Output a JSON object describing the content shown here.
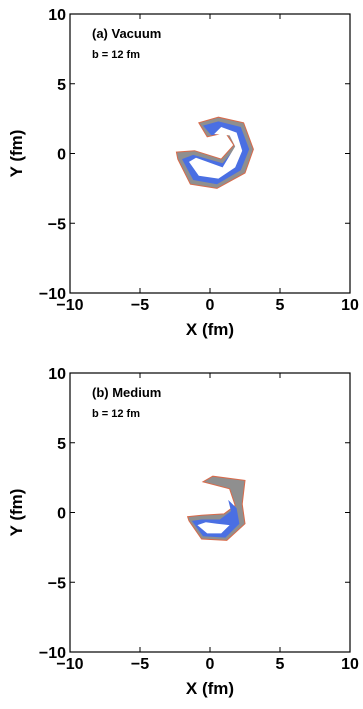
{
  "chart_data": [
    {
      "type": "heatmap",
      "panel_label": "(a) Vacuum",
      "panel_sublabel": "b = 12 fm",
      "xlabel": "X (fm)",
      "ylabel": "Y (fm)",
      "xlim": [
        -10,
        10
      ],
      "ylim": [
        -10,
        10
      ],
      "xticks": [
        -10,
        -5,
        0,
        5,
        10
      ],
      "yticks": [
        -10,
        -5,
        0,
        5,
        10
      ],
      "grid": false,
      "colors": {
        "outer": "#8f8f8f",
        "mid": "#4a6fe3",
        "core": "#ffffff",
        "edge": "#d96a4a"
      },
      "regions": {
        "outer": [
          [
            -2.3,
            -0.4
          ],
          [
            -1.4,
            -2.2
          ],
          [
            0.5,
            -2.5
          ],
          [
            2.5,
            -1.4
          ],
          [
            3.1,
            0.3
          ],
          [
            2.4,
            2.2
          ],
          [
            0.6,
            2.6
          ],
          [
            -0.8,
            2.2
          ],
          [
            -0.2,
            1.2
          ],
          [
            1.1,
            1.5
          ],
          [
            1.7,
            0.6
          ],
          [
            0.8,
            -0.4
          ],
          [
            -1.1,
            0.2
          ],
          [
            -2.4,
            0.1
          ]
        ],
        "mid": [
          [
            -2.0,
            -0.4
          ],
          [
            -1.2,
            -1.9
          ],
          [
            0.5,
            -2.2
          ],
          [
            2.2,
            -1.2
          ],
          [
            2.8,
            0.3
          ],
          [
            2.2,
            1.9
          ],
          [
            0.6,
            2.3
          ],
          [
            -0.5,
            2.0
          ],
          [
            0.1,
            1.3
          ],
          [
            1.3,
            1.6
          ],
          [
            2.0,
            0.6
          ],
          [
            0.9,
            -0.7
          ],
          [
            -1.2,
            -0.1
          ]
        ],
        "core": [
          [
            -1.5,
            -0.6
          ],
          [
            -0.8,
            -1.6
          ],
          [
            0.6,
            -1.8
          ],
          [
            1.8,
            -1.0
          ],
          [
            2.3,
            0.2
          ],
          [
            1.9,
            1.5
          ],
          [
            0.8,
            1.9
          ],
          [
            0.3,
            1.4
          ],
          [
            1.4,
            1.3
          ],
          [
            1.8,
            0.5
          ],
          [
            0.9,
            -1.0
          ],
          [
            -1.0,
            -0.3
          ]
        ]
      }
    },
    {
      "type": "heatmap",
      "panel_label": "(b) Medium",
      "panel_sublabel": "b = 12 fm",
      "xlabel": "X (fm)",
      "ylabel": "Y (fm)",
      "xlim": [
        -10,
        10
      ],
      "ylim": [
        -10,
        10
      ],
      "xticks": [
        -10,
        -5,
        0,
        5,
        10
      ],
      "yticks": [
        -10,
        -5,
        0,
        5,
        10
      ],
      "grid": false,
      "colors": {
        "outer": "#8f8f8f",
        "mid": "#4a6fe3",
        "core": "#ffffff",
        "edge": "#d96a4a"
      },
      "regions": {
        "outer": [
          [
            -1.5,
            -0.6
          ],
          [
            -0.6,
            -1.9
          ],
          [
            1.2,
            -2.0
          ],
          [
            2.5,
            -0.8
          ],
          [
            2.3,
            0.6
          ],
          [
            2.5,
            2.3
          ],
          [
            0.2,
            2.6
          ],
          [
            -0.5,
            2.2
          ],
          [
            1.4,
            1.7
          ],
          [
            1.8,
            0.5
          ],
          [
            1.0,
            -0.1
          ],
          [
            -0.6,
            -0.2
          ],
          [
            -1.6,
            -0.3
          ]
        ],
        "mid": [
          [
            -1.3,
            -0.6
          ],
          [
            -0.5,
            -1.7
          ],
          [
            1.1,
            -1.8
          ],
          [
            2.1,
            -0.8
          ],
          [
            1.9,
            0.3
          ],
          [
            1.3,
            0.9
          ],
          [
            1.5,
            0.1
          ],
          [
            0.7,
            -0.5
          ],
          [
            -0.6,
            -0.5
          ]
        ],
        "core": [
          [
            -0.9,
            -0.9
          ],
          [
            -0.2,
            -1.5
          ],
          [
            0.8,
            -1.5
          ],
          [
            1.4,
            -0.9
          ],
          [
            0.5,
            -0.8
          ],
          [
            -0.3,
            -0.7
          ]
        ]
      }
    }
  ]
}
